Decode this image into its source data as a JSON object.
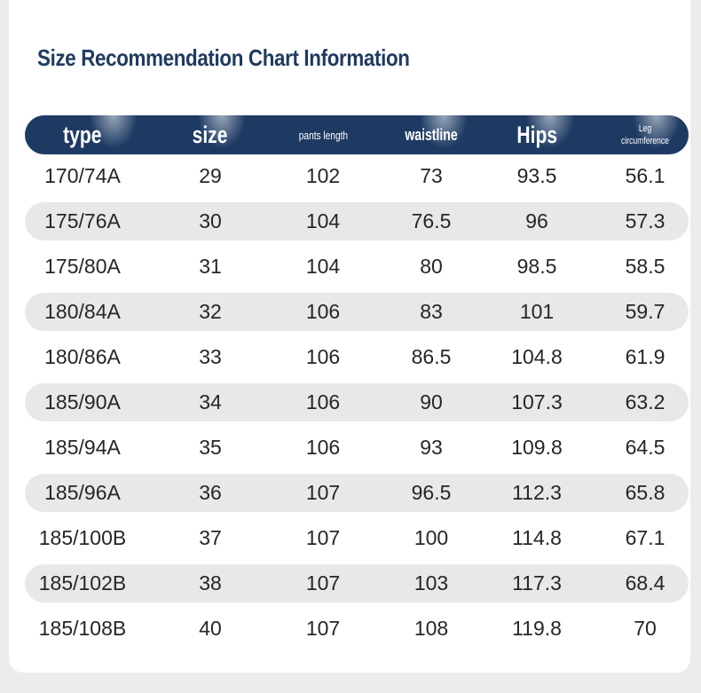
{
  "title": "Size Recommendation Chart Information",
  "colors": {
    "header_bg": "#1e3a63",
    "title_text": "#1f3a5f",
    "stripe_bg": "#e7e8ea",
    "cell_text": "#262626"
  },
  "headers": [
    "type",
    "size",
    "pants length",
    "waistline",
    "Hips",
    "Leg circumference"
  ],
  "rows": [
    [
      "170/74A",
      "29",
      "102",
      "73",
      "93.5",
      "56.1"
    ],
    [
      "175/76A",
      "30",
      "104",
      "76.5",
      "96",
      "57.3"
    ],
    [
      "175/80A",
      "31",
      "104",
      "80",
      "98.5",
      "58.5"
    ],
    [
      "180/84A",
      "32",
      "106",
      "83",
      "101",
      "59.7"
    ],
    [
      "180/86A",
      "33",
      "106",
      "86.5",
      "104.8",
      "61.9"
    ],
    [
      "185/90A",
      "34",
      "106",
      "90",
      "107.3",
      "63.2"
    ],
    [
      "185/94A",
      "35",
      "106",
      "93",
      "109.8",
      "64.5"
    ],
    [
      "185/96A",
      "36",
      "107",
      "96.5",
      "112.3",
      "65.8"
    ],
    [
      "185/100B",
      "37",
      "107",
      "100",
      "114.8",
      "67.1"
    ],
    [
      "185/102B",
      "38",
      "107",
      "103",
      "117.3",
      "68.4"
    ],
    [
      "185/108B",
      "40",
      "107",
      "108",
      "119.8",
      "70"
    ]
  ]
}
